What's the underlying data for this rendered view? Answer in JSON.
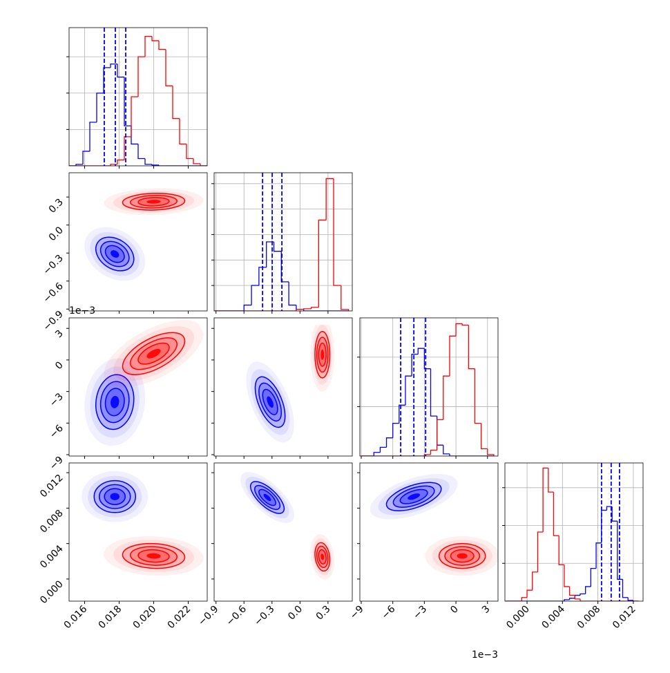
{
  "chart_data": {
    "type": "corner",
    "params": [
      {
        "xlim": [
          0.0151,
          0.0231
        ],
        "ticks": [
          0.016,
          0.018,
          {
            "value": 0.02,
            "label": "0.020"
          },
          0.022
        ],
        "hist": {
          "bins": [
            0.0151,
            0.0155,
            0.0159,
            0.0163,
            0.0167,
            0.0171,
            0.0175,
            0.0179,
            0.0183,
            0.0187,
            0.0191,
            0.0195,
            0.0199,
            0.0203,
            0.0207,
            0.0211,
            0.0215,
            0.0219,
            0.0223,
            0.0227,
            0.0231
          ],
          "ylim": [
            0,
            190
          ],
          "yticks": [
            50,
            100,
            150
          ],
          "series": [
            {
              "color": "#0000ff",
              "counts": [
                0,
                2,
                20,
                60,
                100,
                135,
                140,
                122,
                55,
                30,
                10,
                2,
                1,
                0,
                0,
                0,
                0,
                0,
                0,
                0
              ]
            },
            {
              "color": "#ff0000",
              "counts": [
                0,
                0,
                0,
                0,
                0,
                0,
                2,
                8,
                40,
                95,
                150,
                178,
                172,
                160,
                110,
                65,
                30,
                10,
                3,
                0
              ]
            }
          ],
          "quantiles": [
            0.01714,
            0.01778,
            0.01838
          ],
          "quantile_color": "#0000ff"
        }
      },
      {
        "xlim": [
          -0.92,
          0.56
        ],
        "ticks": [
          {
            "value": -0.9,
            "label": "−0.9"
          },
          {
            "value": -0.6,
            "label": "−0.6"
          },
          {
            "value": -0.3,
            "label": "−0.3"
          },
          {
            "value": 0,
            "label": "0.0"
          },
          0.3
        ],
        "hist": {
          "bins": [
            -0.92,
            -0.84,
            -0.76,
            -0.68,
            -0.6,
            -0.52,
            -0.44,
            -0.36,
            -0.28,
            -0.2,
            -0.12,
            -0.04,
            0.04,
            0.12,
            0.2,
            0.28,
            0.36,
            0.44,
            0.52
          ],
          "ylim": [
            0,
            190
          ],
          "yticks": [
            35,
            70,
            105,
            140,
            175
          ],
          "series": [
            {
              "color": "#0000ff",
              "counts": [
                0,
                0,
                0,
                0,
                8,
                35,
                60,
                95,
                82,
                40,
                8,
                2,
                0,
                0,
                0,
                0,
                0,
                0
              ]
            },
            {
              "color": "#ff0000",
              "counts": [
                0,
                0,
                0,
                0,
                0,
                0,
                0,
                0,
                0,
                0,
                0,
                2,
                3,
                5,
                125,
                182,
                35,
                2
              ]
            }
          ],
          "quantiles": [
            -0.401,
            -0.298,
            -0.194
          ],
          "quantile_color": "#0000ff"
        }
      },
      {
        "xlim": [
          -9.13,
          4.0
        ],
        "ticks": [
          {
            "value": -9,
            "label": "−9"
          },
          {
            "value": -6,
            "label": "−6"
          },
          {
            "value": -3,
            "label": "−3"
          },
          0,
          3
        ],
        "offset_label": "1e−3",
        "hist": {
          "bins": [
            -9,
            -8.4,
            -7.8,
            -7.2,
            -6.6,
            -6,
            -5.4,
            -4.8,
            -4.2,
            -3.6,
            -3,
            -2.4,
            -1.8,
            -1.2,
            -0.6,
            0,
            0.6,
            1.2,
            1.8,
            2.4,
            3,
            3.6
          ],
          "ylim": [
            0,
            190
          ],
          "yticks": [
            68,
            136
          ],
          "series": [
            {
              "color": "#0000ff",
              "counts": [
                0,
                0,
                5,
                12,
                25,
                45,
                70,
                110,
                140,
                148,
                120,
                55,
                15,
                3,
                0,
                0,
                0,
                0,
                0,
                0,
                0
              ]
            },
            {
              "color": "#ff0000",
              "counts": [
                0,
                0,
                0,
                0,
                0,
                0,
                0,
                0,
                0,
                0,
                2,
                8,
                50,
                110,
                165,
                182,
                180,
                120,
                45,
                10,
                2
              ]
            }
          ],
          "quantiles": [
            -5.25,
            -4.0,
            -2.88
          ],
          "quantile_color": "#0000ff"
        }
      },
      {
        "xlim": [
          -0.0025,
          0.0131
        ],
        "ticks": [
          {
            "value": 0,
            "label": "0.000"
          },
          0.004,
          0.008,
          0.012
        ],
        "hist": {
          "bins": [
            -0.0024,
            -0.0018,
            -0.0012,
            -0.0006,
            0,
            0.0006,
            0.0012,
            0.0018,
            0.0024,
            0.003,
            0.0036,
            0.0042,
            0.0048,
            0.0054,
            0.006,
            0.0066,
            0.0072,
            0.0078,
            0.0084,
            0.009,
            0.0096,
            0.0102,
            0.0108,
            0.0114,
            0.012,
            0.0126
          ],
          "ylim": [
            0,
            190
          ],
          "yticks": [
            52,
            104,
            156
          ],
          "series": [
            {
              "color": "#0000ff",
              "counts": [
                0,
                0,
                0,
                0,
                0,
                0,
                0,
                0,
                0,
                0,
                0,
                2,
                4,
                8,
                10,
                20,
                45,
                80,
                125,
                130,
                110,
                30,
                5,
                1,
                0
              ]
            },
            {
              "color": "#ff0000",
              "counts": [
                0,
                0,
                0,
                5,
                15,
                40,
                95,
                183,
                150,
                90,
                50,
                20,
                8,
                3,
                0,
                0,
                0,
                0,
                0,
                0,
                0,
                0,
                0,
                0,
                0
              ]
            }
          ],
          "quantiles": [
            0.00841,
            0.0095,
            0.01044
          ],
          "quantile_color": "#0000ff"
        }
      }
    ],
    "panels": [
      {
        "populations": [
          {
            "color": "#0000ff",
            "center": [
              0.01775,
              -0.31
            ],
            "sd": [
              0.00055,
              0.09
            ],
            "corr": -0.3
          },
          {
            "color": "#ff0000",
            "center": [
              0.02,
              0.25
            ],
            "sd": [
              0.0009,
              0.045
            ],
            "corr": 0.1
          }
        ]
      },
      {
        "populations": [
          {
            "color": "#0000ff",
            "center": [
              0.01775,
              -4.0
            ],
            "sd": [
              0.00055,
              1.3
            ],
            "corr": 0.1
          },
          {
            "color": "#ff0000",
            "center": [
              0.02,
              0.6
            ],
            "sd": [
              0.0009,
              1.0
            ],
            "corr": 0.6
          }
        ]
      },
      {
        "populations": [
          {
            "color": "#0000ff",
            "center": [
              -0.32,
              -4.0
            ],
            "sd": [
              0.08,
              1.2
            ],
            "corr": -0.55
          },
          {
            "color": "#ff0000",
            "center": [
              0.24,
              0.5
            ],
            "sd": [
              0.04,
              1.1
            ],
            "corr": 0
          }
        ]
      },
      {
        "populations": [
          {
            "color": "#0000ff",
            "center": [
              0.01775,
              0.0093
            ],
            "sd": [
              0.0006,
              0.0009
            ],
            "corr": 0
          },
          {
            "color": "#ff0000",
            "center": [
              0.02,
              0.0026
            ],
            "sd": [
              0.0009,
              0.0007
            ],
            "corr": -0.1
          }
        ]
      },
      {
        "populations": [
          {
            "color": "#0000ff",
            "center": [
              -0.35,
              0.0092
            ],
            "sd": [
              0.09,
              0.0009
            ],
            "corr": -0.7
          },
          {
            "color": "#ff0000",
            "center": [
              0.24,
              0.0025
            ],
            "sd": [
              0.04,
              0.0008
            ],
            "corr": -0.2
          }
        ]
      },
      {
        "populations": [
          {
            "color": "#0000ff",
            "center": [
              -4.0,
              0.0093
            ],
            "sd": [
              1.3,
              0.0008
            ],
            "corr": 0.55
          },
          {
            "color": "#ff0000",
            "center": [
              0.6,
              0.0026
            ],
            "sd": [
              1.1,
              0.0007
            ],
            "corr": 0
          }
        ]
      }
    ]
  }
}
